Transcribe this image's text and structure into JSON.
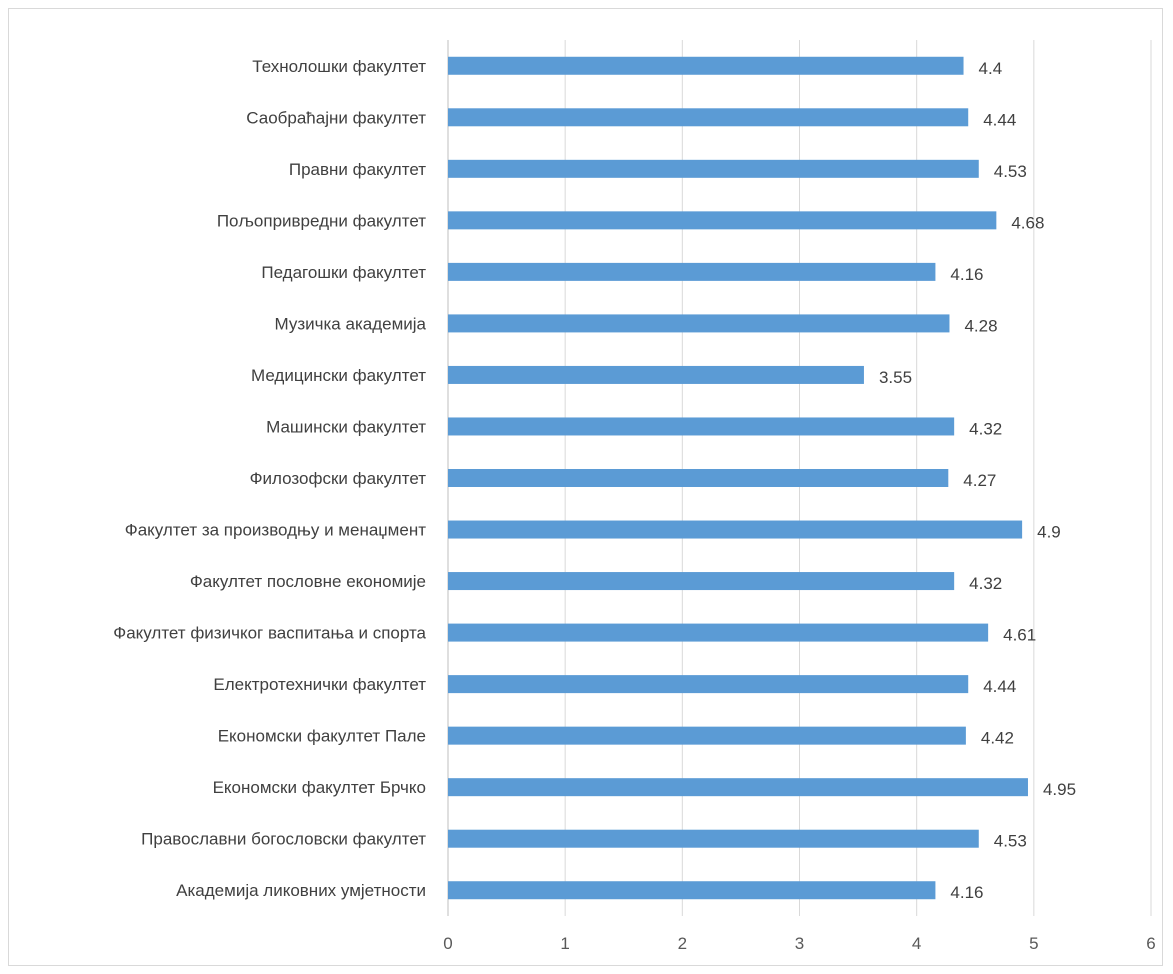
{
  "chart_data": {
    "type": "bar",
    "orientation": "horizontal",
    "categories": [
      "Технолошки факултет",
      "Саобраћајни факултет",
      "Правни факултет",
      "Пољопривредни факултет",
      "Педагошки факултет",
      "Музичка академија",
      "Медицински факултет",
      "Машински факултет",
      "Филозофски факултет",
      "Факултет за производњу и менаџмент",
      "Факултет пословне економије",
      "Факултет физичког васпитања и спорта",
      "Електротехнички факултет",
      "Економски факултет Пале",
      "Економски факултет Брчко",
      "Православни богословски факултет",
      "Академија ликовних умјетности"
    ],
    "values": [
      4.4,
      4.44,
      4.53,
      4.68,
      4.16,
      4.28,
      3.55,
      4.32,
      4.27,
      4.9,
      4.32,
      4.61,
      4.44,
      4.42,
      4.95,
      4.53,
      4.16
    ],
    "value_labels": [
      "4.4",
      "4.44",
      "4.53",
      "4.68",
      "4.16",
      "4.28",
      "3.55",
      "4.32",
      "4.27",
      "4.9",
      "4.32",
      "4.61",
      "4.44",
      "4.42",
      "4.95",
      "4.53",
      "4.16"
    ],
    "xlim": [
      0,
      6
    ],
    "xticks": [
      "0",
      "1",
      "2",
      "3",
      "4",
      "5",
      "6"
    ],
    "title": "",
    "xlabel": "",
    "ylabel": "",
    "grid": "vertical",
    "legend": "none",
    "bar_color": "#5b9bd5",
    "grid_color": "#d9d9d9",
    "axis_color": "#bfbfbf"
  }
}
